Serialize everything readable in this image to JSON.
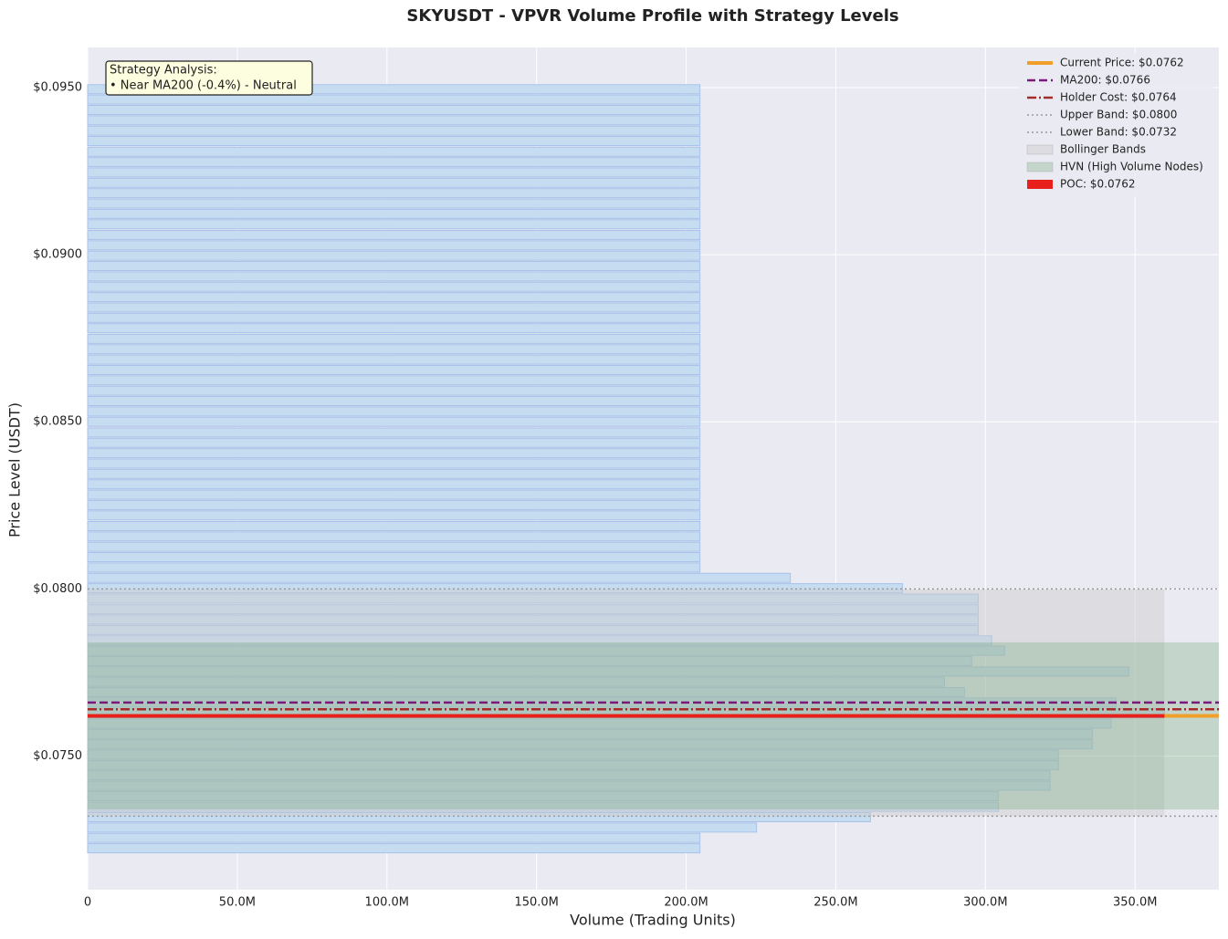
{
  "chart_data": {
    "type": "bar",
    "orientation": "horizontal",
    "title": "SKYUSDT - VPVR Volume Profile with Strategy Levels",
    "x_label": "Volume (Trading Units)",
    "y_label": "Price Level (USDT)",
    "annotation": [
      "Strategy Analysis:",
      "• Near MA200 (-0.4%) - Neutral"
    ],
    "y": [
      0.07224,
      0.07255,
      0.07286,
      0.07317,
      0.07348,
      0.0738,
      0.07411,
      0.07442,
      0.07473,
      0.07504,
      0.07535,
      0.07566,
      0.07597,
      0.07628,
      0.0766,
      0.07691,
      0.07722,
      0.07753,
      0.07784,
      0.07815,
      0.07846,
      0.07877,
      0.07908,
      0.07939,
      0.07971,
      0.08002,
      0.08033,
      0.08064,
      0.08095,
      0.08126,
      0.08157,
      0.08188,
      0.0822,
      0.08251,
      0.08282,
      0.08313,
      0.08344,
      0.08375,
      0.08406,
      0.08437,
      0.08468,
      0.085,
      0.08531,
      0.08562,
      0.08593,
      0.08624,
      0.08655,
      0.08686,
      0.08717,
      0.08748,
      0.0878,
      0.08811,
      0.08842,
      0.08873,
      0.08904,
      0.08935,
      0.08966,
      0.08997,
      0.09028,
      0.09059,
      0.09091,
      0.09122,
      0.09153,
      0.09184,
      0.09215,
      0.09246,
      0.09277,
      0.09308,
      0.0934,
      0.09371,
      0.09402,
      0.09433,
      0.09464,
      0.09495
    ],
    "values": [
      204.6,
      204.6,
      223.5,
      261.6,
      304.3,
      304.3,
      321.6,
      321.6,
      324.4,
      324.4,
      335.7,
      335.7,
      342,
      359.8,
      343.6,
      293,
      286.3,
      347.9,
      295.4,
      306.4,
      302.1,
      297.6,
      297.6,
      297.6,
      297.6,
      272.3,
      234.8,
      204.6,
      204.6,
      204.6,
      204.6,
      204.6,
      204.6,
      204.6,
      204.6,
      204.6,
      204.6,
      204.6,
      204.6,
      204.6,
      204.6,
      204.6,
      204.6,
      204.6,
      204.6,
      204.6,
      204.6,
      204.6,
      204.6,
      204.6,
      204.6,
      204.6,
      204.6,
      204.6,
      204.6,
      204.6,
      204.6,
      204.6,
      204.6,
      204.6,
      204.6,
      204.6,
      204.6,
      204.6,
      204.6,
      204.6,
      204.6,
      204.6,
      204.6,
      204.6,
      204.6,
      204.6,
      204.6,
      204.6
    ],
    "color": "#c6dcf0",
    "edge_color": "#a8c2ea",
    "xlim": [
      0,
      378
    ],
    "ylim": [
      0.071,
      0.0962
    ],
    "xticks": [
      0,
      {
        "value": 50,
        "label": "50.0M"
      },
      {
        "value": 100,
        "label": "100.0M"
      },
      {
        "value": 150,
        "label": "150.0M"
      },
      {
        "value": 200,
        "label": "200.0M"
      },
      {
        "value": 250,
        "label": "250.0M"
      },
      {
        "value": 300,
        "label": "300.0M"
      },
      {
        "value": 350,
        "label": "350.0M"
      }
    ],
    "yticks": [
      {
        "value": 0.075,
        "label": "$0.0750"
      },
      {
        "value": 0.08,
        "label": "$0.0800"
      },
      {
        "value": 0.085,
        "label": "$0.0850"
      },
      {
        "value": 0.09,
        "label": "$0.0900"
      },
      {
        "value": 0.095,
        "label": "$0.0950"
      }
    ],
    "grid": true,
    "legend": "upper right",
    "levels": [
      {
        "name": "Current Price: $0.0762",
        "value": 0.0762,
        "color": "#f0a028",
        "style": "solid"
      },
      {
        "name": "MA200: $0.0766",
        "value": 0.0766,
        "color": "#7a1a7a",
        "style": "dashed"
      },
      {
        "name": "Holder Cost: $0.0764",
        "value": 0.0764,
        "color": "#a52a2a",
        "style": "dashdot"
      },
      {
        "name": "Upper Band: $0.0800",
        "value": 0.08,
        "color": "#999999",
        "style": "dotted"
      },
      {
        "name": "Lower Band: $0.0732",
        "value": 0.0732,
        "color": "#999999",
        "style": "dotted"
      }
    ],
    "bands": [
      {
        "name": "Bollinger Bands",
        "range": [
          0.0732,
          0.08
        ],
        "color": "rgba(205,205,205,0.45)",
        "extent": "profile"
      },
      {
        "name": "HVN (High Volume Nodes)",
        "range": [
          0.0734,
          0.0784
        ],
        "color": "rgba(110,165,115,0.3)",
        "extent": "full"
      }
    ],
    "poc": {
      "name": "POC: $0.0762",
      "value": 0.0762,
      "color": "#e8201c"
    }
  }
}
